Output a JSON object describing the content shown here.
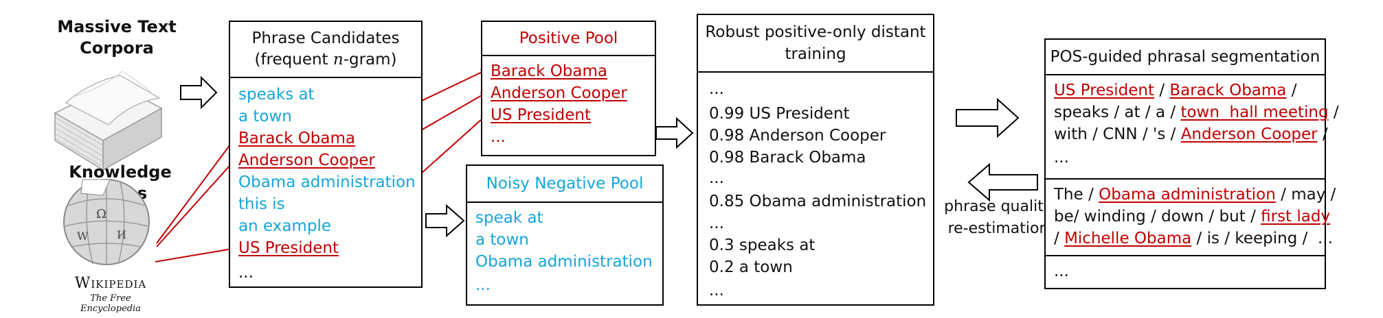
{
  "sources": {
    "corpora_label_line1": "Massive Text",
    "corpora_label_line2": "Corpora",
    "kb_label": "Knowledge bases",
    "wiki_wordmark": "Wikipedia",
    "wiki_tagline": "The Free Encyclopedia"
  },
  "candidates": {
    "title_line1": "Phrase Candidates",
    "title_line2_pre": "(frequent ",
    "title_line2_n": "n",
    "title_line2_post": "-gram)",
    "items": [
      "speaks at",
      "a town",
      "Barack Obama",
      "Anderson Cooper",
      "Obama administration",
      "this is",
      "an example",
      "US President",
      "..."
    ]
  },
  "positive_pool": {
    "title": "Positive Pool",
    "items": [
      "Barack Obama",
      "Anderson Cooper",
      "US President",
      "..."
    ]
  },
  "negative_pool": {
    "title": "Noisy Negative Pool",
    "items": [
      "speak at",
      "a town",
      "Obama administration",
      "..."
    ]
  },
  "training": {
    "title_line1": "Robust positive-only distant",
    "title_line2": "training",
    "items": [
      "...",
      "0.99 US President",
      "0.98 Anderson Cooper",
      "0.98 Barack Obama",
      "...",
      "0.85 Obama administration",
      "...",
      "0.3 speaks at",
      "0.2 a town",
      "..."
    ]
  },
  "segmentation": {
    "title": "POS-guided phrasal segmentation",
    "sec1": {
      "l1": [
        "US President",
        " / ",
        "Barack Obama",
        " /"
      ],
      "l2": [
        "speaks / at / a / ",
        "town  hall meeting",
        " /"
      ],
      "l3": [
        "with / CNN / 's / ",
        "Anderson Cooper",
        " /"
      ],
      "l4": "..."
    },
    "sec2": {
      "l1": [
        "The / ",
        "Obama administration",
        " / may /"
      ],
      "l2": [
        "be/ winding / down / but / ",
        "first lady"
      ],
      "l3": [
        "/ ",
        "Michelle Obama",
        " / is / keeping /  ..."
      ]
    },
    "sec3": "..."
  },
  "feedback": {
    "line1": "phrase quality",
    "line2": "re-estimation"
  },
  "colors": {
    "positive": "#c00000",
    "negative": "#15a6d8",
    "text": "#111111"
  }
}
